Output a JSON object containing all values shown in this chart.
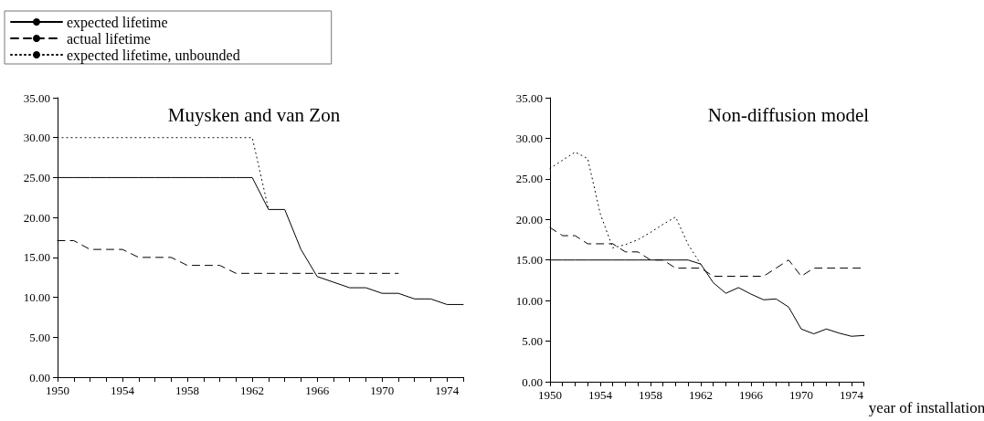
{
  "chart_data": [
    {
      "type": "line",
      "title": "Muysken and van Zon",
      "legend": "top left",
      "marker": "none",
      "x": [
        1950,
        1951,
        1952,
        1953,
        1954,
        1955,
        1956,
        1957,
        1958,
        1959,
        1960,
        1961,
        1962,
        1963,
        1964,
        1965,
        1966,
        1967,
        1968,
        1969,
        1970,
        1971,
        1972,
        1973,
        1974,
        1975
      ],
      "xlim": [
        1950,
        1975
      ],
      "xticks": [
        1950,
        {
          "value": 1951,
          "label": null
        },
        {
          "value": 1952,
          "label": null
        },
        {
          "value": 1953,
          "label": null
        },
        1954,
        {
          "value": 1955,
          "label": null
        },
        {
          "value": 1956,
          "label": null
        },
        {
          "value": 1957,
          "label": null
        },
        1958,
        {
          "value": 1959,
          "label": null
        },
        {
          "value": 1960,
          "label": null
        },
        {
          "value": 1961,
          "label": null
        },
        1962,
        {
          "value": 1963,
          "label": null
        },
        {
          "value": 1964,
          "label": null
        },
        {
          "value": 1965,
          "label": null
        },
        1966,
        {
          "value": 1967,
          "label": null
        },
        {
          "value": 1968,
          "label": null
        },
        {
          "value": 1969,
          "label": null
        },
        1970,
        {
          "value": 1971,
          "label": null
        },
        {
          "value": 1972,
          "label": null
        },
        {
          "value": 1973,
          "label": null
        },
        1974,
        {
          "value": 1975,
          "label": null
        }
      ],
      "ylim": [
        0,
        35
      ],
      "yticks": [
        {
          "value": 0,
          "label": "0.00"
        },
        {
          "value": 5,
          "label": "5.00"
        },
        {
          "value": 10,
          "label": "10.00"
        },
        {
          "value": 15,
          "label": "15.00"
        },
        {
          "value": 20,
          "label": "20.00"
        },
        {
          "value": 25,
          "label": "25.00"
        },
        {
          "value": 30,
          "label": "30.00"
        },
        {
          "value": 35,
          "label": "35.00"
        }
      ],
      "series": [
        {
          "name": "expected lifetime",
          "color": "#000000",
          "line_style": "solid",
          "values": [
            25,
            25,
            25,
            25,
            25,
            25,
            25,
            25,
            25,
            25,
            25,
            25,
            25,
            21,
            21,
            16,
            12.6,
            11.9,
            11.2,
            11.2,
            10.5,
            10.5,
            9.8,
            9.8,
            9.1,
            9.1
          ]
        },
        {
          "name": "actual lifetime",
          "color": "#000000",
          "line_style": "dashed",
          "values": [
            17.1,
            17.1,
            16,
            16,
            16,
            15,
            15,
            15,
            14,
            14,
            14,
            13,
            13,
            13,
            13,
            13,
            13,
            13,
            13,
            13,
            13,
            13,
            null,
            null,
            null,
            null
          ]
        },
        {
          "name": "expected lifetime, unbounded",
          "color": "#000000",
          "line_style": "dotted",
          "values": [
            30,
            30,
            30,
            30,
            30,
            30,
            30,
            30,
            30,
            30,
            30,
            30,
            30,
            21,
            null,
            null,
            null,
            null,
            null,
            null,
            null,
            null,
            null,
            null,
            null,
            null
          ]
        }
      ]
    },
    {
      "type": "line",
      "title": "Non-diffusion model",
      "xlabel": "year of installation",
      "marker": "none",
      "x": [
        1950,
        1951,
        1952,
        1953,
        1954,
        1955,
        1956,
        1957,
        1958,
        1959,
        1960,
        1961,
        1962,
        1963,
        1964,
        1965,
        1966,
        1967,
        1968,
        1969,
        1970,
        1971,
        1972,
        1973,
        1974,
        1975
      ],
      "xlim": [
        1950,
        1975
      ],
      "xticks": [
        1950,
        {
          "value": 1951,
          "label": null
        },
        {
          "value": 1952,
          "label": null
        },
        {
          "value": 1953,
          "label": null
        },
        1954,
        {
          "value": 1955,
          "label": null
        },
        {
          "value": 1956,
          "label": null
        },
        {
          "value": 1957,
          "label": null
        },
        1958,
        {
          "value": 1959,
          "label": null
        },
        {
          "value": 1960,
          "label": null
        },
        {
          "value": 1961,
          "label": null
        },
        1962,
        {
          "value": 1963,
          "label": null
        },
        {
          "value": 1964,
          "label": null
        },
        {
          "value": 1965,
          "label": null
        },
        1966,
        {
          "value": 1967,
          "label": null
        },
        {
          "value": 1968,
          "label": null
        },
        {
          "value": 1969,
          "label": null
        },
        1970,
        {
          "value": 1971,
          "label": null
        },
        {
          "value": 1972,
          "label": null
        },
        {
          "value": 1973,
          "label": null
        },
        1974,
        {
          "value": 1975,
          "label": null
        }
      ],
      "ylim": [
        0,
        35
      ],
      "yticks": [
        {
          "value": 0,
          "label": "0.00"
        },
        {
          "value": 5,
          "label": "5.00"
        },
        {
          "value": 10,
          "label": "10.00"
        },
        {
          "value": 15,
          "label": "15.00"
        },
        {
          "value": 20,
          "label": "20.00"
        },
        {
          "value": 25,
          "label": "25.00"
        },
        {
          "value": 30,
          "label": "30.00"
        },
        {
          "value": 35,
          "label": "35.00"
        }
      ],
      "series": [
        {
          "color": "#000000",
          "line_style": "solid",
          "values": [
            15,
            15,
            15,
            15,
            15,
            15,
            15,
            15,
            15,
            15,
            15,
            15,
            14.5,
            12.2,
            10.9,
            11.6,
            10.8,
            10.1,
            10.2,
            9.2,
            6.5,
            5.9,
            6.5,
            6,
            5.6,
            5.7
          ]
        },
        {
          "color": "#000000",
          "line_style": "dashed",
          "values": [
            19,
            18,
            18,
            17,
            17,
            17,
            16,
            16,
            15,
            15,
            14,
            14,
            14,
            13,
            13,
            13,
            13,
            13,
            14,
            15,
            13,
            14,
            14,
            14,
            14,
            14
          ]
        },
        {
          "color": "#000000",
          "line_style": "dotted",
          "values": [
            26.3,
            27.3,
            28.3,
            27.5,
            20.7,
            16.5,
            16.9,
            17.5,
            18.4,
            19.4,
            20.3,
            16.9,
            14.5,
            null,
            null,
            null,
            null,
            null,
            null,
            null,
            null,
            null,
            null,
            null,
            null,
            null
          ]
        }
      ]
    }
  ]
}
